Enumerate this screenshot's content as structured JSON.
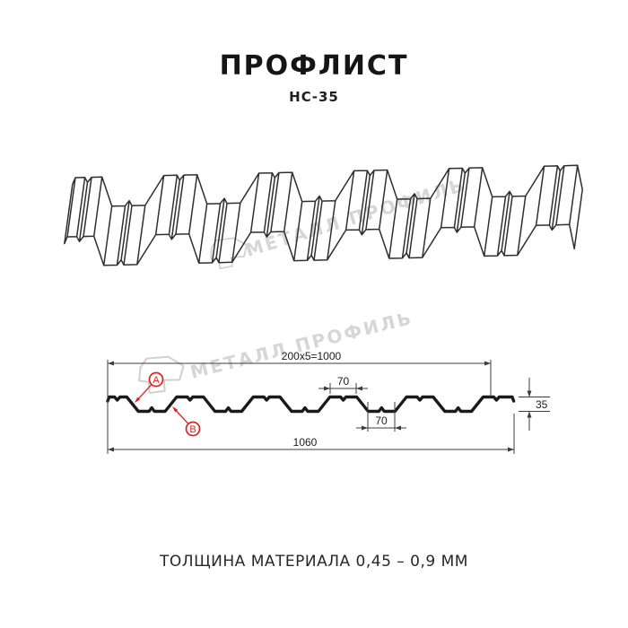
{
  "header": {
    "title": "ПРОФЛИСТ",
    "subtitle": "НС-35"
  },
  "watermark": {
    "brand": "МЕТАЛЛ ПРОФИЛЬ"
  },
  "cross_section": {
    "coverage_width": "200x5=1000",
    "crest_flat_width": "70",
    "valley_flat_width": "70",
    "profile_height": "35",
    "overall_width": "1060",
    "marker_a": "A",
    "marker_b": "B"
  },
  "footer": {
    "note": "ТОЛЩИНА МАТЕРИАЛА 0,45 – 0,9 ММ"
  },
  "colors": {
    "marker": "#e02020",
    "line": "#2f2f2f",
    "watermark": "#d6d6d6"
  }
}
